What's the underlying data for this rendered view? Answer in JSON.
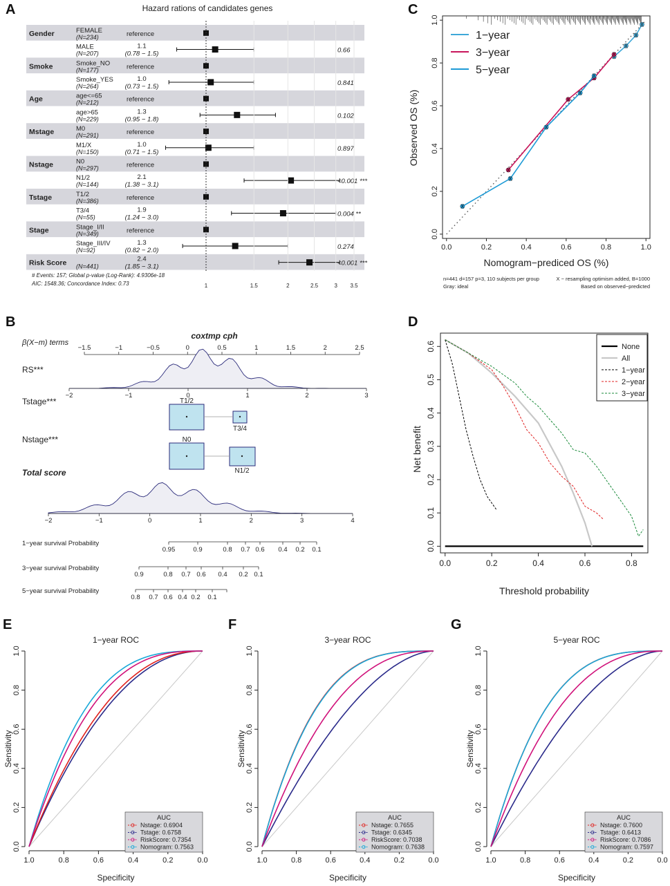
{
  "panels": {
    "A": "A",
    "B": "B",
    "C": "C",
    "D": "D",
    "E": "E",
    "F": "F",
    "G": "G"
  },
  "colors": {
    "forest_band": "#d6d6dc",
    "nomogram_fill": "#bfe3ef",
    "nomogram_stroke": "#2a2a7a",
    "c_1year": "#3ea8d8",
    "c_3year": "#c8145a",
    "c_5year": "#1c9ad6",
    "roc_nstage": "#e0201c",
    "roc_tstage": "#2a2a8a",
    "roc_risk": "#d0117a",
    "roc_nomo": "#18a8d8",
    "dca_none": "#000000",
    "dca_all": "#c8c8c8",
    "dca_1year": "#000000",
    "dca_2year": "#e02020",
    "dca_3year": "#1a8a3a"
  },
  "chart_data": [
    {
      "id": "A",
      "type": "forest",
      "title": "Hazard rations of candidates genes",
      "rows": [
        {
          "group": "Gender",
          "level": "FEMALE",
          "n": "(N=234)",
          "hr_text": "reference",
          "ci_text": "",
          "p": "",
          "hr": 1.0,
          "lo": null,
          "hi": null,
          "ref": true
        },
        {
          "group": "",
          "level": "MALE",
          "n": "(N=207)",
          "hr_text": "1.1",
          "ci_text": "(0.78 − 1.5)",
          "p": "0.66",
          "hr": 1.08,
          "lo": 0.78,
          "hi": 1.5,
          "ref": false
        },
        {
          "group": "Smoke",
          "level": "Smoke_NO",
          "n": "(N=177)",
          "hr_text": "reference",
          "ci_text": "",
          "p": "",
          "hr": 1.0,
          "lo": null,
          "hi": null,
          "ref": true
        },
        {
          "group": "",
          "level": "Smoke_YES",
          "n": "(N=264)",
          "hr_text": "1.0",
          "ci_text": "(0.73 − 1.5)",
          "p": "0.841",
          "hr": 1.04,
          "lo": 0.73,
          "hi": 1.5,
          "ref": false
        },
        {
          "group": "Age",
          "level": "age<=65",
          "n": "(N=212)",
          "hr_text": "reference",
          "ci_text": "",
          "p": "",
          "hr": 1.0,
          "lo": null,
          "hi": null,
          "ref": true
        },
        {
          "group": "",
          "level": "age>65",
          "n": "(N=229)",
          "hr_text": "1.3",
          "ci_text": "(0.95 − 1.8)",
          "p": "0.102",
          "hr": 1.3,
          "lo": 0.95,
          "hi": 1.8,
          "ref": false
        },
        {
          "group": "Mstage",
          "level": "M0",
          "n": "(N=291)",
          "hr_text": "reference",
          "ci_text": "",
          "p": "",
          "hr": 1.0,
          "lo": null,
          "hi": null,
          "ref": true
        },
        {
          "group": "",
          "level": "M1/X",
          "n": "(N=150)",
          "hr_text": "1.0",
          "ci_text": "(0.71 − 1.5)",
          "p": "0.897",
          "hr": 1.02,
          "lo": 0.71,
          "hi": 1.5,
          "ref": false
        },
        {
          "group": "Nstage",
          "level": "N0",
          "n": "(N=297)",
          "hr_text": "reference",
          "ci_text": "",
          "p": "",
          "hr": 1.0,
          "lo": null,
          "hi": null,
          "ref": true
        },
        {
          "group": "",
          "level": "N1/2",
          "n": "(N=144)",
          "hr_text": "2.1",
          "ci_text": "(1.38 − 3.1)",
          "p": "<0.001 ***",
          "hr": 2.05,
          "lo": 1.38,
          "hi": 3.1,
          "ref": false
        },
        {
          "group": "Tstage",
          "level": "T1/2",
          "n": "(N=386)",
          "hr_text": "reference",
          "ci_text": "",
          "p": "",
          "hr": 1.0,
          "lo": null,
          "hi": null,
          "ref": true
        },
        {
          "group": "",
          "level": "T3/4",
          "n": "(N=55)",
          "hr_text": "1.9",
          "ci_text": "(1.24 − 3.0)",
          "p": "0.004 **",
          "hr": 1.92,
          "lo": 1.24,
          "hi": 3.0,
          "ref": false
        },
        {
          "group": "Stage",
          "level": "Stage_I/II",
          "n": "(N=349)",
          "hr_text": "reference",
          "ci_text": "",
          "p": "",
          "hr": 1.0,
          "lo": null,
          "hi": null,
          "ref": true
        },
        {
          "group": "",
          "level": "Stage_III/IV",
          "n": "(N=92)",
          "hr_text": "1.3",
          "ci_text": "(0.82 − 2.0)",
          "p": "0.274",
          "hr": 1.28,
          "lo": 0.82,
          "hi": 2.0,
          "ref": false
        },
        {
          "group": "Risk Score",
          "level": "",
          "n": "(N=441)",
          "hr_text": "2.4",
          "ci_text": "(1.85 − 3.1)",
          "p": "<0.001 ***",
          "hr": 2.4,
          "lo": 1.85,
          "hi": 3.1,
          "ref": false
        }
      ],
      "footnote1": "# Events: 157; Global p-value (Log-Rank): 4.9306e-18",
      "footnote2": "AIC: 1548.36; Concordance Index: 0.73",
      "xticks": [
        1,
        1.5,
        2,
        2.5,
        3,
        3.5
      ],
      "xticklabels": [
        "1",
        "1.5",
        "2",
        "2.5",
        "3",
        "3.5"
      ],
      "xlim": [
        0.65,
        3.6
      ],
      "xscale": "log"
    },
    {
      "id": "B",
      "type": "nomogram",
      "title": "coxtmp cph",
      "terms_label": "β(X−m) terms",
      "top_axis": [
        -1.5,
        -1,
        -0.5,
        0,
        0.5,
        1,
        1.5,
        2,
        2.5
      ],
      "top_axis_labels": [
        "−1.5",
        "−1",
        "−0.5",
        "0",
        "0.5",
        "1",
        "1.5",
        "2",
        "2.5"
      ],
      "rs_label": "RS***",
      "rs_axis": [
        -2,
        -1,
        0,
        1,
        2,
        3
      ],
      "rs_axis_labels": [
        "−2",
        "−1",
        "0",
        "1",
        "2",
        "3"
      ],
      "tstage_label": "Tstage***",
      "tstage_levels": [
        "T1/2",
        "T3/4"
      ],
      "nstage_label": "Nstage***",
      "nstage_levels": [
        "N0",
        "N1/2"
      ],
      "total_label": "Total score",
      "total_axis": [
        -2,
        -1,
        0,
        1,
        2,
        3,
        4
      ],
      "total_axis_labels": [
        "−2",
        "−1",
        "0",
        "1",
        "2",
        "3",
        "4"
      ],
      "surv1_label": "1−year survival Probability",
      "surv1_ticks": [
        "0.95",
        "0.9",
        "0.8",
        "0.7",
        "0.6",
        "0.4",
        "0.2",
        "0.1"
      ],
      "surv3_label": "3−year survival Probability",
      "surv3_ticks": [
        "0.9",
        "0.8",
        "0.7",
        "0.6",
        "0.4",
        "0.2",
        "0.1"
      ],
      "surv5_label": "5−year survival Probability",
      "surv5_ticks": [
        "0.8",
        "0.7",
        "0.6",
        "0.4",
        "0.2",
        "0.1"
      ]
    },
    {
      "id": "C",
      "type": "line",
      "title": "",
      "xlabel": "Nomogram−prediced OS (%)",
      "ylabel": "Observed OS (%)",
      "xlim": [
        -0.02,
        1.02
      ],
      "ylim": [
        -0.02,
        1.02
      ],
      "ticks": [
        0.0,
        0.2,
        0.4,
        0.6,
        0.8,
        1.0
      ],
      "ticklabels": [
        "0.0",
        "0.2",
        "0.4",
        "0.6",
        "0.8",
        "1.0"
      ],
      "series": [
        {
          "name": "1−year",
          "x": [
            0.84,
            0.9,
            0.95,
            0.98
          ],
          "y": [
            0.83,
            0.88,
            0.93,
            0.98
          ]
        },
        {
          "name": "3−year",
          "x": [
            0.31,
            0.61,
            0.74,
            0.84
          ],
          "y": [
            0.3,
            0.63,
            0.73,
            0.84
          ]
        },
        {
          "name": "5−year",
          "x": [
            0.08,
            0.32,
            0.5,
            0.67,
            0.74
          ],
          "y": [
            0.13,
            0.26,
            0.5,
            0.66,
            0.74
          ]
        }
      ],
      "footnote_left1": "n=441 d=157 p=3, 110 subjects per group",
      "footnote_left2": "Gray: ideal",
      "footnote_right1": "X − resampling optimism added, B=1000",
      "footnote_right2": "Based on observed−predicted"
    },
    {
      "id": "D",
      "type": "line",
      "title": "",
      "xlabel": "Threshold probability",
      "ylabel": "Net benefit",
      "xlim": [
        -0.02,
        0.87
      ],
      "ylim": [
        -0.02,
        0.64
      ],
      "xticks": [
        0.0,
        0.2,
        0.4,
        0.6,
        0.8
      ],
      "xticklabels": [
        "0.0",
        "0.2",
        "0.4",
        "0.6",
        "0.8"
      ],
      "yticks": [
        0.0,
        0.1,
        0.2,
        0.3,
        0.4,
        0.5,
        0.6
      ],
      "yticklabels": [
        "0.0",
        "0.1",
        "0.2",
        "0.3",
        "0.4",
        "0.5",
        "0.6"
      ],
      "legend": [
        "None",
        "All",
        "1−year",
        "2−year",
        "3−year"
      ],
      "series": [
        {
          "name": "None",
          "x": [
            0.0,
            0.85
          ],
          "y": [
            0.0,
            0.0
          ]
        },
        {
          "name": "All",
          "x": [
            0.0,
            0.1,
            0.2,
            0.3,
            0.4,
            0.5,
            0.55,
            0.6,
            0.63
          ],
          "y": [
            0.62,
            0.58,
            0.52,
            0.45,
            0.37,
            0.24,
            0.16,
            0.07,
            0.0
          ]
        },
        {
          "name": "1−year",
          "x": [
            0.0,
            0.03,
            0.06,
            0.09,
            0.12,
            0.15,
            0.18,
            0.22
          ],
          "y": [
            0.62,
            0.55,
            0.45,
            0.35,
            0.27,
            0.2,
            0.15,
            0.11
          ]
        },
        {
          "name": "2−year",
          "x": [
            0.0,
            0.1,
            0.2,
            0.25,
            0.3,
            0.35,
            0.4,
            0.45,
            0.5,
            0.55,
            0.6,
            0.65,
            0.68
          ],
          "y": [
            0.62,
            0.58,
            0.53,
            0.48,
            0.42,
            0.35,
            0.31,
            0.25,
            0.21,
            0.18,
            0.12,
            0.1,
            0.08
          ]
        },
        {
          "name": "3−year",
          "x": [
            0.0,
            0.1,
            0.2,
            0.3,
            0.35,
            0.4,
            0.45,
            0.5,
            0.55,
            0.6,
            0.65,
            0.7,
            0.75,
            0.8,
            0.83,
            0.85
          ],
          "y": [
            0.62,
            0.58,
            0.54,
            0.49,
            0.45,
            0.42,
            0.38,
            0.34,
            0.29,
            0.28,
            0.24,
            0.19,
            0.14,
            0.09,
            0.03,
            0.05
          ]
        }
      ]
    },
    {
      "id": "E",
      "type": "line",
      "title": "1−year ROC",
      "xlabel": "Specificity",
      "ylabel": "Sensitivity",
      "legend_title": "AUC",
      "legend": [
        "Nstage: 0.6904",
        "Tstage: 0.6758",
        "RiskScore: 0.7354",
        "Nomogram: 0.7563"
      ],
      "auc": [
        0.6904,
        0.6758,
        0.7354,
        0.7563
      ]
    },
    {
      "id": "F",
      "type": "line",
      "title": "3−year ROC",
      "xlabel": "Specificity",
      "ylabel": "Sensitivity",
      "legend_title": "AUC",
      "legend": [
        "Nstage: 0.7655",
        "Tstage: 0.6345",
        "RiskScore: 0.7038",
        "Nomogram: 0.7638"
      ],
      "auc": [
        0.7655,
        0.6345,
        0.7038,
        0.7638
      ]
    },
    {
      "id": "G",
      "type": "line",
      "title": "5−year ROC",
      "xlabel": "Specificity",
      "ylabel": "Sensitivity",
      "legend_title": "AUC",
      "legend": [
        "Nstage: 0.7600",
        "Tstage: 0.6413",
        "RiskScore: 0.7086",
        "Nomogram: 0.7597"
      ],
      "auc": [
        0.76,
        0.6413,
        0.7086,
        0.7597
      ]
    }
  ],
  "roc_axis": {
    "xticks": [
      "1.0",
      "0.8",
      "0.6",
      "0.4",
      "0.2",
      "0.0"
    ],
    "yticks": [
      "0.0",
      "0.2",
      "0.4",
      "0.6",
      "0.8",
      "1.0"
    ]
  }
}
